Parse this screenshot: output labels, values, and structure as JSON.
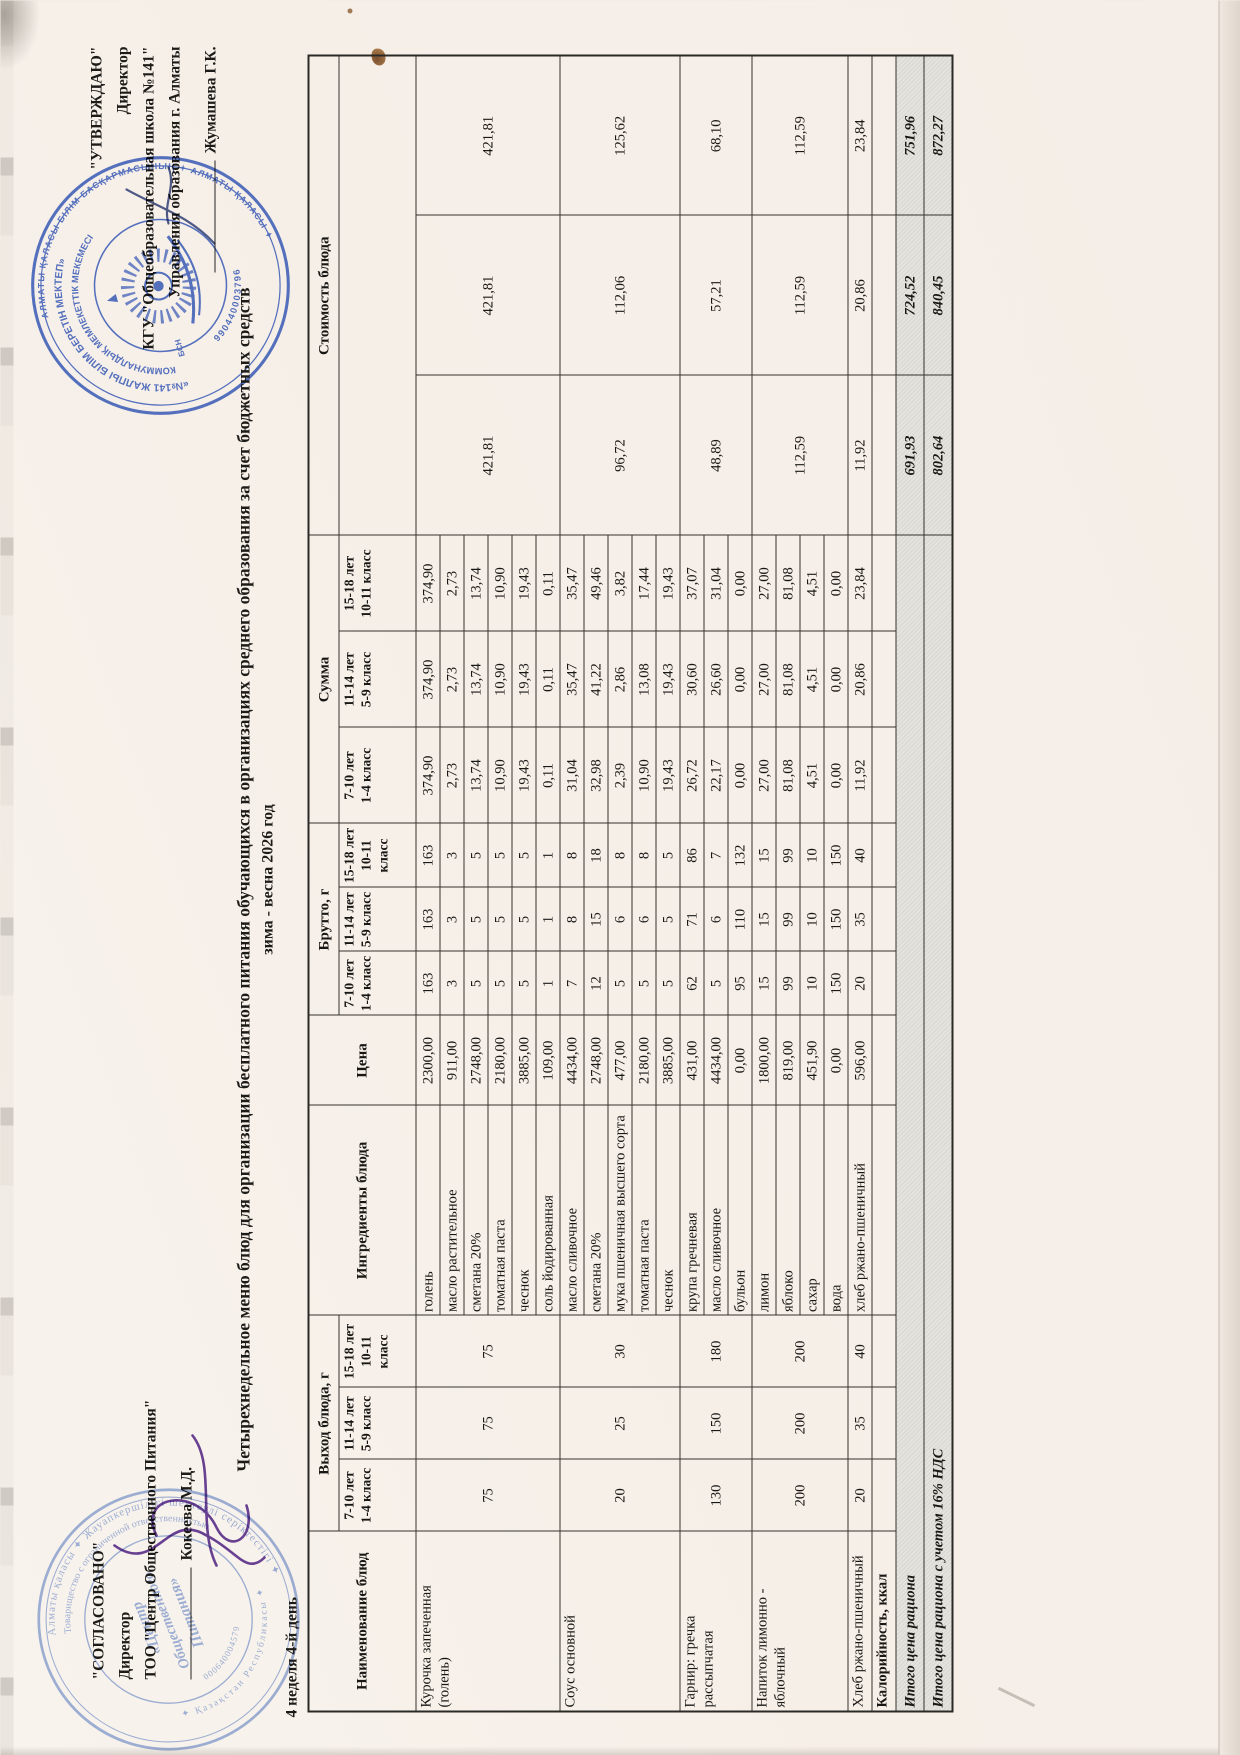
{
  "page": {
    "agree_block": {
      "line1": "\"СОГЛАСОВАНО\"",
      "line2": "Директор",
      "line3": "ТОО \"Центр Общественного Питания\"",
      "signature_name": "Кокеева М.Д."
    },
    "approve_block": {
      "line1": "\"УТВЕРЖДАЮ\"",
      "line2": "Директор",
      "line3": "КГУ \"Общеобразовательная школа №141\"",
      "line4": "Управления образования г. Алматы",
      "signature_name": "Жумашева Г.К."
    },
    "title": "Четырехнедельное меню блюд для организации бесплатного питания обучающихся в организациях среднего образования за счет бюджетных средств",
    "subtitle": "зима - весна 2026 год",
    "week_label": "4 неделя 4-й день",
    "stamps": {
      "school": {
        "outer_text": "АЛМАТЫ ҚАЛАСЫ БІЛІМ БАСҚАРМАСЫНЫҢ ✦ АЛМАТЫ ҚАЛАСЫ ✦",
        "top_text": "«№141 ЖАЛПЫ БІЛІМ БЕРЕТІН МЕКТЕП»",
        "mid_text": "КОММУНАЛДЫҚ МЕМЛЕКЕТТІК МЕКЕМЕСІ",
        "bin_label": "БСН",
        "bin": "990440003796",
        "color": "#3f63c8"
      },
      "company": {
        "outer_text": "Алматы қаласы ✦ Жауапкершілігі шектеулі серіктестігі ✦",
        "inner_text": "Товарищество с ограниченной ответственностью",
        "center1": "«Центр",
        "center2": "Общественного",
        "center3": "Питания»",
        "bottom_text": "✦ Қазақстан Республикасы ✦",
        "bin": "000640004579",
        "color": "#8aa4dc"
      }
    }
  },
  "table": {
    "headers": {
      "name": "Наименование блюд",
      "out": "Выход блюда, г",
      "ingredients": "Ингредиенты блюда",
      "price": "Цена",
      "brutto": "Брутто, г",
      "summa": "Сумма",
      "cost": "Стоимость блюда"
    },
    "age_columns": [
      "7-10 лет\n1-4 класс",
      "11-14 лет\n5-9 класс",
      "15-18 лет\n10-11 класс"
    ],
    "dishes": [
      {
        "name": "Курочка запеченная\n(голень)",
        "portions": [
          "75",
          "75",
          "75"
        ],
        "cost": [
          "421,81",
          "421,81",
          "421,81"
        ],
        "ingredients": [
          {
            "name": "голень",
            "price": "2300,00",
            "brutto": [
              "163",
              "163",
              "163"
            ],
            "summa": [
              "374,90",
              "374,90",
              "374,90"
            ]
          },
          {
            "name": "масло растительное",
            "price": "911,00",
            "brutto": [
              "3",
              "3",
              "3"
            ],
            "summa": [
              "2,73",
              "2,73",
              "2,73"
            ]
          },
          {
            "name": "сметана 20%",
            "price": "2748,00",
            "brutto": [
              "5",
              "5",
              "5"
            ],
            "summa": [
              "13,74",
              "13,74",
              "13,74"
            ]
          },
          {
            "name": "томатная паста",
            "price": "2180,00",
            "brutto": [
              "5",
              "5",
              "5"
            ],
            "summa": [
              "10,90",
              "10,90",
              "10,90"
            ]
          },
          {
            "name": "чеснок",
            "price": "3885,00",
            "brutto": [
              "5",
              "5",
              "5"
            ],
            "summa": [
              "19,43",
              "19,43",
              "19,43"
            ]
          },
          {
            "name": "соль йодированная",
            "price": "109,00",
            "brutto": [
              "1",
              "1",
              "1"
            ],
            "summa": [
              "0,11",
              "0,11",
              "0,11"
            ]
          }
        ]
      },
      {
        "name": "Соус основной",
        "portions": [
          "20",
          "25",
          "30"
        ],
        "cost": [
          "96,72",
          "112,06",
          "125,62"
        ],
        "ingredients": [
          {
            "name": "масло сливочное",
            "price": "4434,00",
            "brutto": [
              "7",
              "8",
              "8"
            ],
            "summa": [
              "31,04",
              "35,47",
              "35,47"
            ]
          },
          {
            "name": "сметана 20%",
            "price": "2748,00",
            "brutto": [
              "12",
              "15",
              "18"
            ],
            "summa": [
              "32,98",
              "41,22",
              "49,46"
            ]
          },
          {
            "name": "мука пшеничная высшего сорта",
            "price": "477,00",
            "brutto": [
              "5",
              "6",
              "8"
            ],
            "summa": [
              "2,39",
              "2,86",
              "3,82"
            ]
          },
          {
            "name": "томатная паста",
            "price": "2180,00",
            "brutto": [
              "5",
              "6",
              "8"
            ],
            "summa": [
              "10,90",
              "13,08",
              "17,44"
            ]
          },
          {
            "name": "чеснок",
            "price": "3885,00",
            "brutto": [
              "5",
              "5",
              "5"
            ],
            "summa": [
              "19,43",
              "19,43",
              "19,43"
            ]
          }
        ]
      },
      {
        "name": "Гарнир: гречка рассыпчатая",
        "portions": [
          "130",
          "150",
          "180"
        ],
        "cost": [
          "48,89",
          "57,21",
          "68,10"
        ],
        "ingredients": [
          {
            "name": "крупа гречневая",
            "price": "431,00",
            "brutto": [
              "62",
              "71",
              "86"
            ],
            "summa": [
              "26,72",
              "30,60",
              "37,07"
            ]
          },
          {
            "name": "масло сливочное",
            "price": "4434,00",
            "brutto": [
              "5",
              "6",
              "7"
            ],
            "summa": [
              "22,17",
              "26,60",
              "31,04"
            ]
          },
          {
            "name": "бульон",
            "price": "0,00",
            "brutto": [
              "95",
              "110",
              "132"
            ],
            "summa": [
              "0,00",
              "0,00",
              "0,00"
            ]
          }
        ]
      },
      {
        "name": "Напиток лимонно -\nяблочный",
        "portions": [
          "200",
          "200",
          "200"
        ],
        "cost": [
          "112,59",
          "112,59",
          "112,59"
        ],
        "ingredients": [
          {
            "name": "лимон",
            "price": "1800,00",
            "brutto": [
              "15",
              "15",
              "15"
            ],
            "summa": [
              "27,00",
              "27,00",
              "27,00"
            ]
          },
          {
            "name": "яблоко",
            "price": "819,00",
            "brutto": [
              "99",
              "99",
              "99"
            ],
            "summa": [
              "81,08",
              "81,08",
              "81,08"
            ]
          },
          {
            "name": "сахар",
            "price": "451,90",
            "brutto": [
              "10",
              "10",
              "10"
            ],
            "summa": [
              "4,51",
              "4,51",
              "4,51"
            ]
          },
          {
            "name": "вода",
            "price": "0,00",
            "brutto": [
              "150",
              "150",
              "150"
            ],
            "summa": [
              "0,00",
              "0,00",
              "0,00"
            ]
          }
        ]
      },
      {
        "name": "Хлеб ржано-пшеничный",
        "portions": [
          "20",
          "35",
          "40"
        ],
        "cost": [
          "11,92",
          "20,86",
          "23,84"
        ],
        "ingredients": [
          {
            "name": "хлеб ржано-пшеничный",
            "price": "596,00",
            "brutto": [
              "20",
              "35",
              "40"
            ],
            "summa": [
              "11,92",
              "20,86",
              "23,84"
            ]
          }
        ]
      }
    ],
    "calories_label": "Калорийность, ккал",
    "total_row": {
      "label": "Итого цена рациона",
      "values": [
        "691,93",
        "724,52",
        "751,96"
      ]
    },
    "total_vat_row": {
      "label": "Итого цена рациона с учетом 16% НДС",
      "values": [
        "802,64",
        "840,45",
        "872,27"
      ]
    }
  }
}
